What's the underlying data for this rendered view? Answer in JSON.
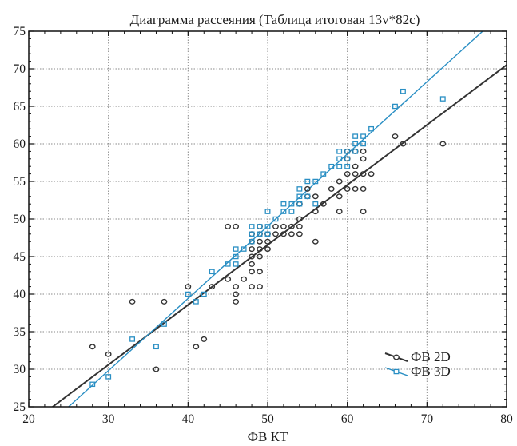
{
  "chart_data": {
    "type": "scatter",
    "title": "Диаграмма рассеяния (Таблица итоговая 13v*82c)",
    "xlabel": "ФВ КТ",
    "ylabel": "",
    "xlim": [
      20,
      80
    ],
    "ylim": [
      25,
      75
    ],
    "xticks": [
      "20",
      "30",
      "40",
      "50",
      "60",
      "70",
      "80"
    ],
    "yticks": [
      "25",
      "30",
      "35",
      "40",
      "45",
      "50",
      "55",
      "60",
      "65",
      "70",
      "75"
    ],
    "grid": true,
    "legend_position": "bottom-right",
    "series": [
      {
        "name": "ФВ 2D",
        "color": "#333333",
        "marker": "circle",
        "fit_line": [
          [
            23,
            25
          ],
          [
            80,
            70.5
          ]
        ],
        "points": [
          [
            28,
            33
          ],
          [
            30,
            32
          ],
          [
            33,
            39
          ],
          [
            36,
            30
          ],
          [
            37,
            39
          ],
          [
            40,
            41
          ],
          [
            41,
            33
          ],
          [
            42,
            34
          ],
          [
            43,
            41
          ],
          [
            45,
            42
          ],
          [
            45,
            49
          ],
          [
            46,
            49
          ],
          [
            46,
            41
          ],
          [
            46,
            40
          ],
          [
            46,
            39
          ],
          [
            47,
            42
          ],
          [
            48,
            48
          ],
          [
            48,
            47
          ],
          [
            48,
            46
          ],
          [
            48,
            45
          ],
          [
            48,
            44
          ],
          [
            48,
            43
          ],
          [
            48,
            41
          ],
          [
            49,
            49
          ],
          [
            49,
            48
          ],
          [
            49,
            47
          ],
          [
            49,
            46
          ],
          [
            49,
            45
          ],
          [
            49,
            43
          ],
          [
            49,
            41
          ],
          [
            50,
            48
          ],
          [
            50,
            47
          ],
          [
            50,
            46
          ],
          [
            51,
            48
          ],
          [
            51,
            49
          ],
          [
            52,
            49
          ],
          [
            52,
            48
          ],
          [
            53,
            49
          ],
          [
            53,
            48
          ],
          [
            54,
            50
          ],
          [
            54,
            49
          ],
          [
            54,
            48
          ],
          [
            54,
            52
          ],
          [
            55,
            54
          ],
          [
            55,
            53
          ],
          [
            56,
            53
          ],
          [
            56,
            51
          ],
          [
            56,
            47
          ],
          [
            57,
            52
          ],
          [
            58,
            54
          ],
          [
            59,
            55
          ],
          [
            59,
            53
          ],
          [
            59,
            51
          ],
          [
            60,
            59
          ],
          [
            60,
            58
          ],
          [
            60,
            56
          ],
          [
            60,
            54
          ],
          [
            61,
            59
          ],
          [
            61,
            57
          ],
          [
            61,
            56
          ],
          [
            61,
            54
          ],
          [
            62,
            59
          ],
          [
            62,
            58
          ],
          [
            62,
            56
          ],
          [
            62,
            54
          ],
          [
            62,
            51
          ],
          [
            63,
            56
          ],
          [
            66,
            61
          ],
          [
            67,
            60
          ],
          [
            72,
            60
          ]
        ]
      },
      {
        "name": "ФВ 3D",
        "color": "#2a8fc4",
        "marker": "square",
        "fit_line": [
          [
            25,
            25
          ],
          [
            77,
            75
          ]
        ],
        "points": [
          [
            28,
            28
          ],
          [
            30,
            29
          ],
          [
            33,
            34
          ],
          [
            36,
            33
          ],
          [
            37,
            36
          ],
          [
            40,
            40
          ],
          [
            41,
            39
          ],
          [
            42,
            40
          ],
          [
            43,
            43
          ],
          [
            45,
            44
          ],
          [
            46,
            45
          ],
          [
            46,
            46
          ],
          [
            46,
            44
          ],
          [
            47,
            46
          ],
          [
            48,
            49
          ],
          [
            48,
            48
          ],
          [
            48,
            47
          ],
          [
            49,
            48
          ],
          [
            49,
            49
          ],
          [
            50,
            49
          ],
          [
            50,
            51
          ],
          [
            50,
            48
          ],
          [
            51,
            50
          ],
          [
            52,
            51
          ],
          [
            52,
            52
          ],
          [
            53,
            51
          ],
          [
            53,
            52
          ],
          [
            54,
            52
          ],
          [
            54,
            54
          ],
          [
            54,
            53
          ],
          [
            55,
            55
          ],
          [
            55,
            53
          ],
          [
            56,
            55
          ],
          [
            56,
            52
          ],
          [
            57,
            56
          ],
          [
            58,
            57
          ],
          [
            59,
            58
          ],
          [
            59,
            59
          ],
          [
            59,
            57
          ],
          [
            60,
            58
          ],
          [
            60,
            59
          ],
          [
            60,
            57
          ],
          [
            61,
            61
          ],
          [
            61,
            60
          ],
          [
            61,
            59
          ],
          [
            62,
            61
          ],
          [
            62,
            60
          ],
          [
            63,
            62
          ],
          [
            66,
            65
          ],
          [
            67,
            67
          ],
          [
            72,
            66
          ]
        ]
      }
    ]
  }
}
